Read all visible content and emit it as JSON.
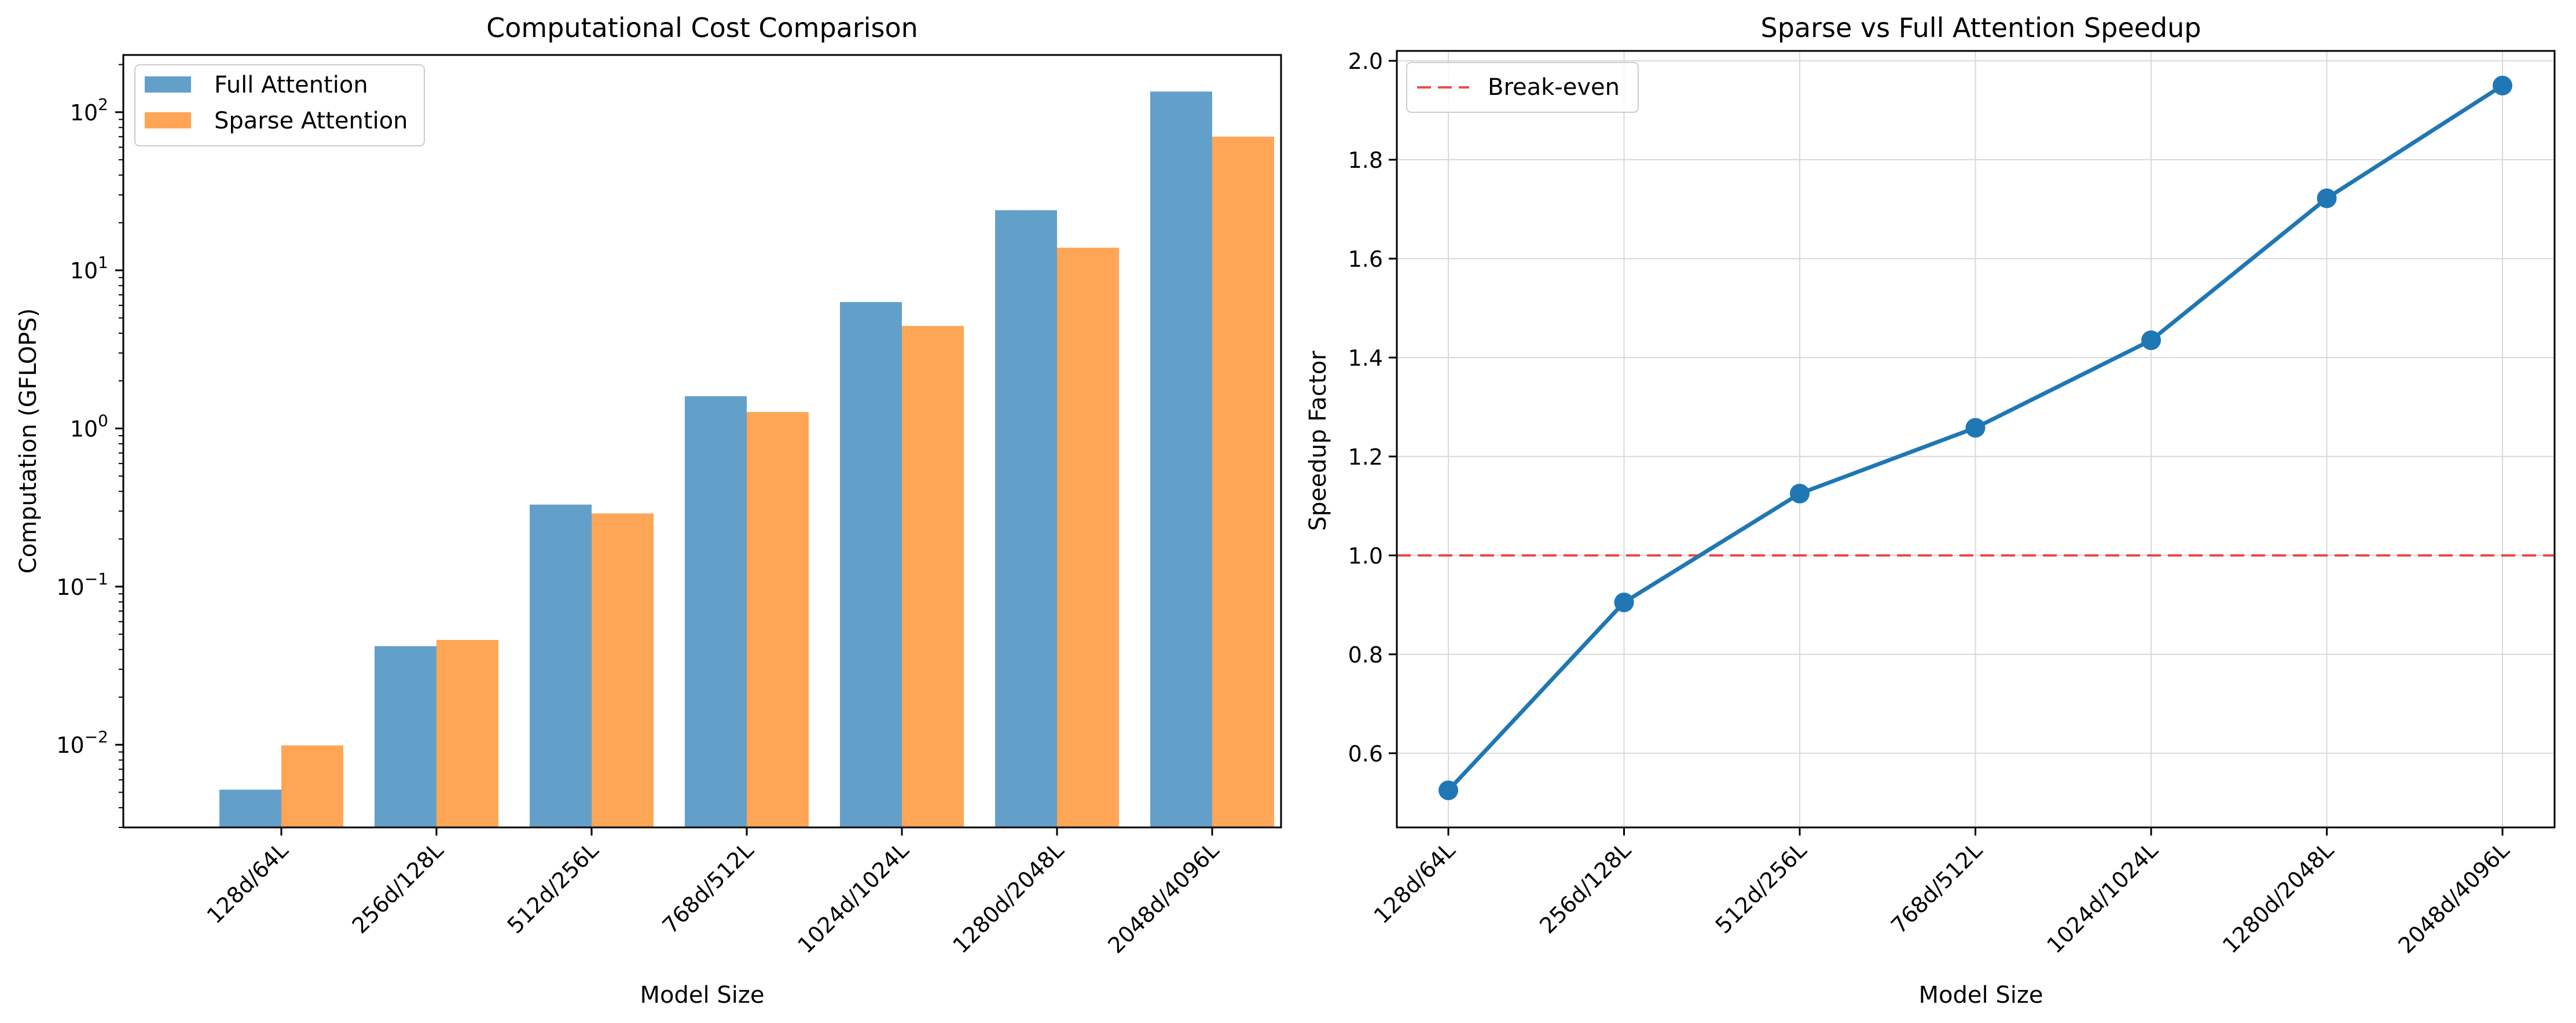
{
  "colors": {
    "full": "#1f77b4",
    "sparse": "#ff7f0e",
    "line": "#1f77b4",
    "breakeven": "#e8211c",
    "grid": "#d9d9d9"
  },
  "chart_data": [
    {
      "type": "bar",
      "title": "Computational Cost Comparison",
      "xlabel": "Model Size",
      "ylabel": "Computation (GFLOPS)",
      "yscale": "log",
      "ylim": [
        0.003,
        230
      ],
      "categories": [
        "128d/64L",
        "256d/128L",
        "512d/256L",
        "768d/512L",
        "1024d/1024L",
        "1280d/2048L",
        "2048d/4096L"
      ],
      "series": [
        {
          "name": "Full Attention",
          "values": [
            0.0052,
            0.042,
            0.33,
            1.6,
            6.3,
            24.0,
            135.0
          ]
        },
        {
          "name": "Sparse Attention",
          "values": [
            0.0099,
            0.046,
            0.29,
            1.27,
            4.45,
            13.9,
            70.0
          ]
        }
      ],
      "yticks": [
        {
          "value": 0.01,
          "base": "10",
          "exp": "−2"
        },
        {
          "value": 0.1,
          "base": "10",
          "exp": "−1"
        },
        {
          "value": 1,
          "base": "10",
          "exp": "0"
        },
        {
          "value": 10,
          "base": "10",
          "exp": "1"
        },
        {
          "value": 100,
          "base": "10",
          "exp": "2"
        }
      ],
      "grid": false,
      "legend_position": "top-left"
    },
    {
      "type": "line",
      "title": "Sparse vs Full Attention Speedup",
      "xlabel": "Model Size",
      "ylabel": "Speedup Factor",
      "ylim": [
        0.45,
        2.02
      ],
      "categories": [
        "128d/64L",
        "256d/128L",
        "512d/256L",
        "768d/512L",
        "1024d/1024L",
        "1280d/2048L",
        "2048d/4096L"
      ],
      "series": [
        {
          "name": "",
          "values": [
            0.525,
            0.905,
            1.125,
            1.258,
            1.435,
            1.722,
            1.95
          ]
        }
      ],
      "reference_line": {
        "name": "Break-even",
        "value": 1.0,
        "style": "dashed"
      },
      "yticks": [
        "0.6",
        "0.8",
        "1.0",
        "1.2",
        "1.4",
        "1.6",
        "1.8",
        "2.0"
      ],
      "grid": true,
      "legend_position": "top-left"
    }
  ]
}
